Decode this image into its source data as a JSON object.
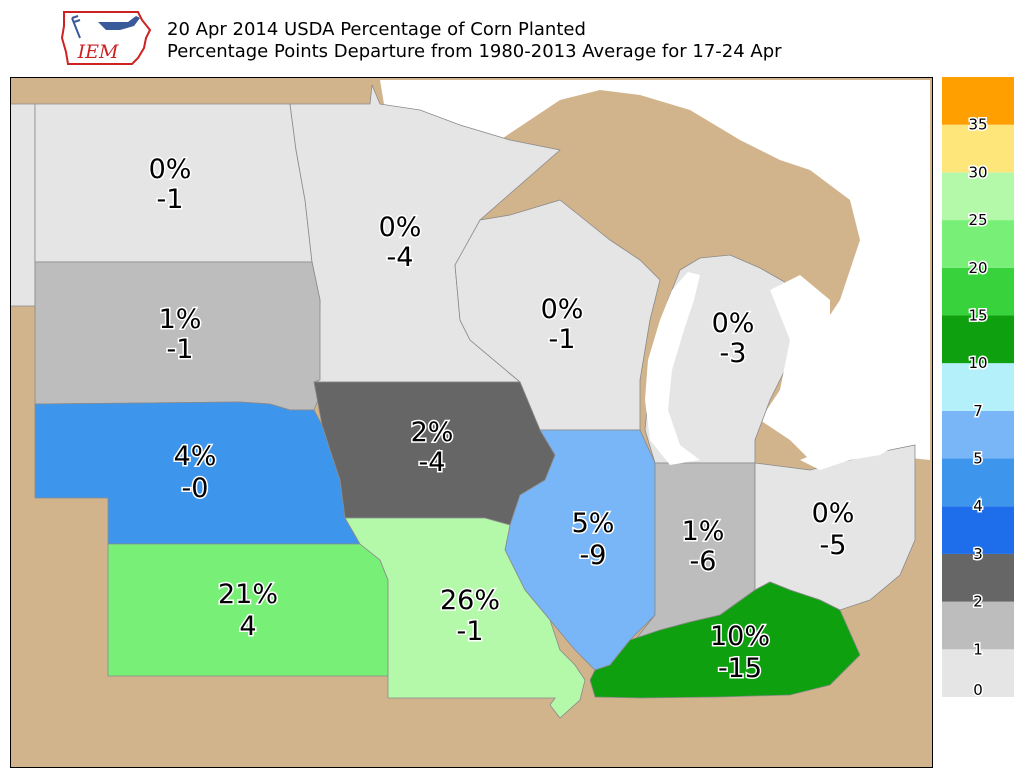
{
  "header": {
    "logo_text": "IEM",
    "title_line1": "20 Apr 2014 USDA Percentage of Corn Planted",
    "title_line2": "Percentage Points Departure from 1980-2013 Average for 17-24 Apr"
  },
  "colors": {
    "background_land": "#d2b48c",
    "lakes": "#ffffff",
    "state_border": "#8a8a8a"
  },
  "states": [
    {
      "id": "north-dakota",
      "pct": "0%",
      "dep": "-1",
      "color": "#e5e5e5"
    },
    {
      "id": "minnesota",
      "pct": "0%",
      "dep": "-4",
      "color": "#e5e5e5"
    },
    {
      "id": "south-dakota",
      "pct": "1%",
      "dep": "-1",
      "color": "#bdbdbd"
    },
    {
      "id": "wisconsin",
      "pct": "0%",
      "dep": "-1",
      "color": "#e5e5e5"
    },
    {
      "id": "michigan",
      "pct": "0%",
      "dep": "-3",
      "color": "#e5e5e5"
    },
    {
      "id": "iowa",
      "pct": "2%",
      "dep": "-4",
      "color": "#666666"
    },
    {
      "id": "nebraska",
      "pct": "4%",
      "dep": "-0",
      "color": "#3d96ec"
    },
    {
      "id": "illinois",
      "pct": "5%",
      "dep": "-9",
      "color": "#78b6f8"
    },
    {
      "id": "indiana",
      "pct": "1%",
      "dep": "-6",
      "color": "#bdbdbd"
    },
    {
      "id": "ohio",
      "pct": "0%",
      "dep": "-5",
      "color": "#e5e5e5"
    },
    {
      "id": "kansas",
      "pct": "21%",
      "dep": "4",
      "color": "#78f078"
    },
    {
      "id": "missouri",
      "pct": "26%",
      "dep": "-1",
      "color": "#b4f8aa"
    },
    {
      "id": "kentucky",
      "pct": "10%",
      "dep": "-15",
      "color": "#0fa00f"
    }
  ],
  "legend": {
    "bins": [
      {
        "color": "#e5e5e5"
      },
      {
        "color": "#bdbdbd"
      },
      {
        "color": "#666666"
      },
      {
        "color": "#1e6eeb"
      },
      {
        "color": "#3d96ec"
      },
      {
        "color": "#78b6f8"
      },
      {
        "color": "#b4f0fa"
      },
      {
        "color": "#0fa00f"
      },
      {
        "color": "#37d23c"
      },
      {
        "color": "#78f078"
      },
      {
        "color": "#b4f8aa"
      },
      {
        "color": "#ffe67a"
      },
      {
        "color": "#ffa000"
      }
    ],
    "tick_labels": [
      "0",
      "1",
      "2",
      "3",
      "4",
      "5",
      "7",
      "10",
      "15",
      "20",
      "25",
      "30",
      "35"
    ]
  }
}
